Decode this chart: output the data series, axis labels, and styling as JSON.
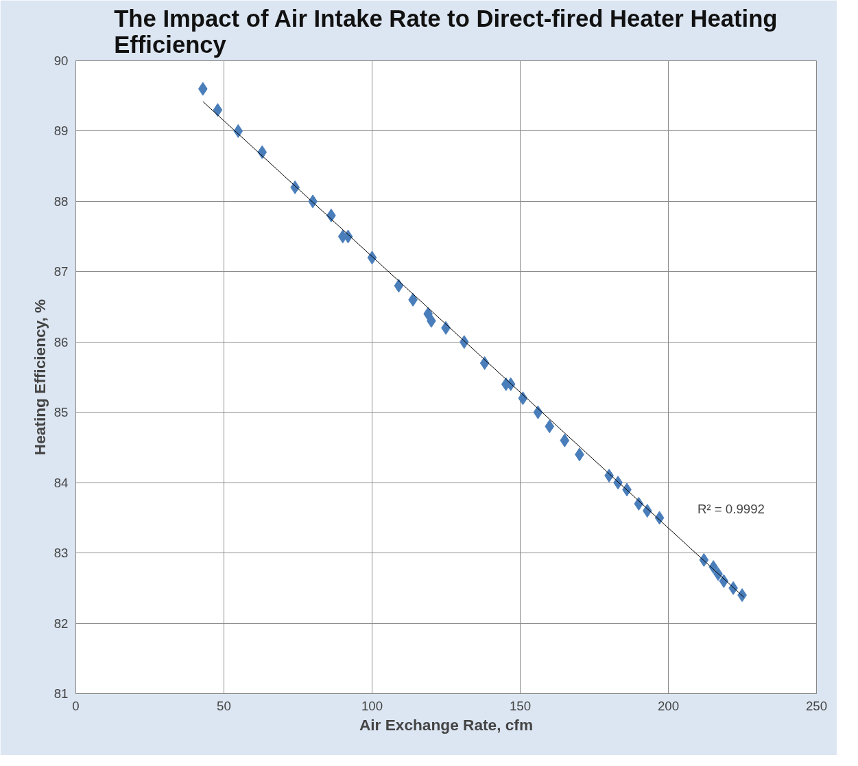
{
  "chart_data": {
    "type": "scatter",
    "title": "The Impact of Air Intake Rate to Direct-fired Heater Heating\nEfficiency",
    "xlabel": "Air Exchange Rate, cfm",
    "ylabel": "Heating Efficiency, %",
    "xlim": [
      0,
      250
    ],
    "xticks": [
      0,
      50,
      100,
      150,
      200,
      250
    ],
    "ylim": [
      81,
      90
    ],
    "yticks": [
      81,
      82,
      83,
      84,
      85,
      86,
      87,
      88,
      89,
      90
    ],
    "grid": true,
    "marker": "diamond",
    "series": [
      {
        "color": "#4a7ebb",
        "x": [
          42.9,
          47.9,
          54.8,
          62.9,
          74,
          80,
          86.2,
          90.1,
          91.9,
          100,
          109,
          113.8,
          118.9,
          120,
          124.9,
          131.1,
          138,
          145.2,
          146.8,
          150.9,
          156,
          159.9,
          165,
          170,
          180,
          183,
          186,
          190,
          192.9,
          197,
          212,
          215.2,
          216.8,
          218.7,
          221.9,
          224.9
        ],
        "values": [
          89.6,
          89.3,
          89.0,
          88.7,
          88.2,
          88.0,
          87.8,
          87.5,
          87.5,
          87.2,
          86.8,
          86.6,
          86.4,
          86.3,
          86.2,
          86.0,
          85.7,
          85.4,
          85.4,
          85.2,
          85.0,
          84.8,
          84.6,
          84.4,
          84.1,
          84.0,
          83.9,
          83.7,
          83.6,
          83.5,
          82.9,
          82.8,
          82.7,
          82.6,
          82.5,
          82.4
        ]
      },
      {
        "type": "line",
        "marker": "none",
        "color": "#000000",
        "x": [
          42.9,
          225.5
        ],
        "values": [
          89.42,
          82.37
        ]
      }
    ],
    "annotations": [
      "R² = 0.9992"
    ]
  }
}
